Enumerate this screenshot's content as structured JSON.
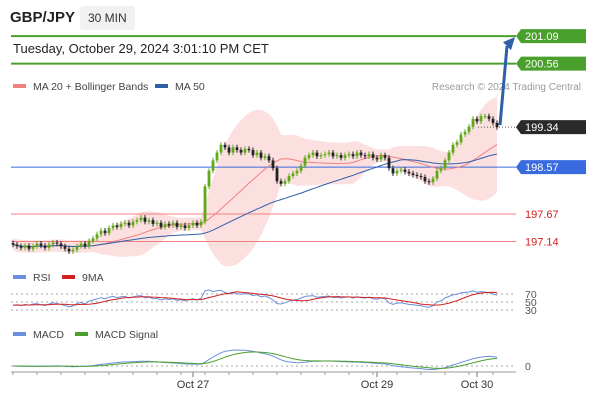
{
  "header": {
    "symbol": "GBP/JPY",
    "timeframe": "30 MIN",
    "timestamp": "Tuesday, October 29, 2024 3:01:10 PM CET"
  },
  "legend": {
    "ma20": "MA 20 + Bollinger Bands",
    "ma50": "MA 50",
    "credit": "Research © 2024 Trading Central",
    "rsi": "RSI",
    "rsi_ma": "9MA",
    "macd": "MACD",
    "macd_signal": "MACD Signal"
  },
  "colors": {
    "up": "#5fa817",
    "down": "#222222",
    "ma20": "#f08080",
    "ma50": "#2e5fa8",
    "band": "#fbd5d5",
    "resistance": "#4aa02c",
    "support": "#f08080",
    "pivot": "#3a6ae0",
    "arrow": "#2e5fa8",
    "rsi": "#6b8fdc",
    "rsi_ma": "#d02020",
    "macd": "#6b8fdc",
    "macd_signal": "#4aa02c"
  },
  "chart_data": {
    "type": "candlestick",
    "x_ticks": [
      "Oct 27",
      "Oct 29",
      "Oct 30"
    ],
    "ylim": [
      196.5,
      201.5
    ],
    "levels": [
      {
        "label": "201.09",
        "value": 201.09,
        "kind": "resistance"
      },
      {
        "label": "200.56",
        "value": 200.56,
        "kind": "resistance"
      },
      {
        "label": "199.34",
        "value": 199.34,
        "kind": "last"
      },
      {
        "label": "198.57",
        "value": 198.57,
        "kind": "pivot"
      },
      {
        "label": "197.67",
        "value": 197.67,
        "kind": "support"
      },
      {
        "label": "197.14",
        "value": 197.14,
        "kind": "support"
      }
    ],
    "projection": {
      "from": 199.34,
      "to": 201.09
    },
    "closes": [
      197.08,
      197.05,
      197.02,
      197.06,
      197.0,
      197.05,
      197.1,
      197.06,
      197.02,
      197.08,
      197.12,
      197.1,
      197.05,
      197.0,
      196.95,
      196.98,
      197.05,
      197.1,
      197.05,
      197.15,
      197.2,
      197.28,
      197.35,
      197.3,
      197.4,
      197.45,
      197.42,
      197.48,
      197.5,
      197.45,
      197.52,
      197.55,
      197.6,
      197.52,
      197.55,
      197.48,
      197.5,
      197.42,
      197.48,
      197.45,
      197.5,
      197.42,
      197.45,
      197.4,
      197.45,
      197.5,
      197.45,
      197.52,
      198.2,
      198.5,
      198.7,
      198.85,
      199.0,
      198.95,
      198.85,
      198.95,
      198.9,
      198.85,
      198.92,
      198.9,
      198.8,
      198.85,
      198.75,
      198.78,
      198.7,
      198.55,
      198.3,
      198.25,
      198.3,
      198.4,
      198.45,
      198.5,
      198.6,
      198.75,
      198.8,
      198.85,
      198.78,
      198.8,
      198.82,
      198.85,
      198.78,
      198.8,
      198.75,
      198.8,
      198.82,
      198.78,
      198.85,
      198.8,
      198.78,
      198.82,
      198.75,
      198.72,
      198.8,
      198.75,
      198.55,
      198.45,
      198.5,
      198.52,
      198.48,
      198.45,
      198.42,
      198.4,
      198.38,
      198.3,
      198.28,
      198.35,
      198.5,
      198.55,
      198.7,
      198.85,
      199.0,
      199.05,
      199.2,
      199.25,
      199.35,
      199.5,
      199.45,
      199.55,
      199.55,
      199.5,
      199.42,
      199.34
    ],
    "rsi_levels": [
      70,
      50,
      30
    ],
    "rsi": [
      42,
      43,
      41,
      44,
      42,
      45,
      46,
      43,
      41,
      45,
      48,
      46,
      44,
      41,
      38,
      40,
      46,
      49,
      45,
      52,
      55,
      58,
      61,
      58,
      62,
      64,
      61,
      63,
      64,
      60,
      63,
      65,
      66,
      60,
      62,
      58,
      59,
      55,
      58,
      56,
      58,
      54,
      56,
      53,
      56,
      58,
      55,
      59,
      78,
      80,
      76,
      78,
      79,
      74,
      70,
      73,
      71,
      69,
      71,
      70,
      66,
      68,
      63,
      65,
      61,
      55,
      46,
      45,
      48,
      52,
      55,
      56,
      60,
      64,
      65,
      66,
      62,
      63,
      64,
      65,
      61,
      62,
      60,
      62,
      63,
      60,
      63,
      61,
      60,
      62,
      58,
      57,
      60,
      58,
      48,
      44,
      47,
      48,
      46,
      44,
      43,
      42,
      41,
      38,
      37,
      41,
      50,
      53,
      60,
      64,
      68,
      69,
      73,
      74,
      75,
      78,
      74,
      76,
      75,
      73,
      70,
      67
    ],
    "macd_zero": 0
  }
}
